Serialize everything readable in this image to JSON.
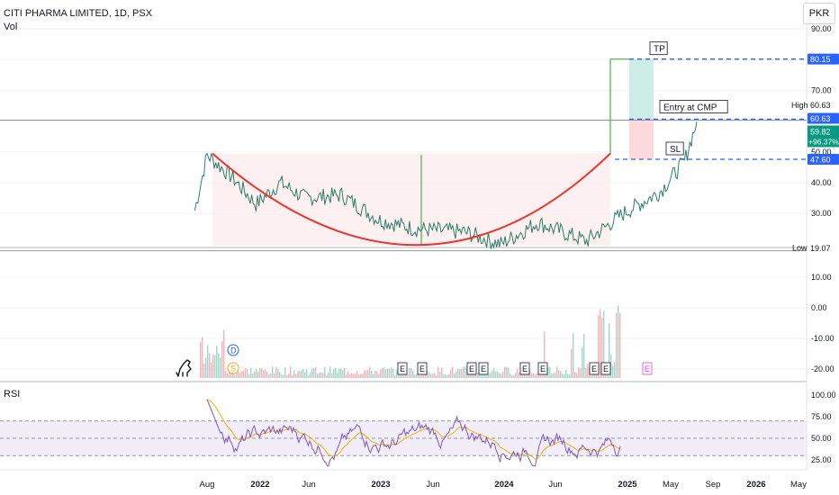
{
  "header": {
    "title": "CITI PHARMA LIMITED, 1D, PSX",
    "vol_label": "Vol",
    "rsi_label": "RSI"
  },
  "currency_button": "PKR",
  "colors": {
    "accent_blue": "#2962ff",
    "up_green": "#089981",
    "down_red": "#f23645",
    "cup_red": "#e53935",
    "rsi_purple": "#7e57c2",
    "rsi_yellow": "#f5b400",
    "tp_zone": "#cdeee7",
    "sl_zone": "#fbd9dd",
    "base_zone": "#fdecec"
  },
  "chart_data": [
    {
      "type": "line",
      "title": "CITI PHARMA LIMITED, 1D, PSX",
      "x_ticks": [
        "Aug",
        "2022",
        "Jun",
        "2023",
        "Jun",
        "2024",
        "Jun",
        "2025",
        "May",
        "Sep",
        "2026",
        "May"
      ],
      "y_ticks": [
        "90.00",
        "80.00",
        "70.00",
        "60.00",
        "50.00",
        "40.00",
        "30.00"
      ],
      "ylim": [
        19,
        90
      ],
      "price_points": [
        {
          "x": "2021-07",
          "y": 31
        },
        {
          "x": "2021-08",
          "y": 49
        },
        {
          "x": "2021-10",
          "y": 42
        },
        {
          "x": "2021-12",
          "y": 33
        },
        {
          "x": "2022-02",
          "y": 40
        },
        {
          "x": "2022-04",
          "y": 35
        },
        {
          "x": "2022-07",
          "y": 36
        },
        {
          "x": "2022-10",
          "y": 28
        },
        {
          "x": "2023-01",
          "y": 25
        },
        {
          "x": "2023-05",
          "y": 24
        },
        {
          "x": "2023-08",
          "y": 20
        },
        {
          "x": "2023-11",
          "y": 27
        },
        {
          "x": "2024-03",
          "y": 21
        },
        {
          "x": "2024-06",
          "y": 30
        },
        {
          "x": "2024-09",
          "y": 37
        },
        {
          "x": "2024-11",
          "y": 47
        },
        {
          "x": "2024-12",
          "y": 59.82
        }
      ],
      "levels": {
        "tp": {
          "label": "TP",
          "value": 80.15,
          "tag": "80.15"
        },
        "entry": {
          "label": "Entry at CMP",
          "value": 60.63,
          "tag": "60.63"
        },
        "sl": {
          "label": "SL",
          "value": 47.6,
          "tag": "47.60"
        }
      },
      "high": {
        "label": "High",
        "value": 60.63,
        "tag": "60.63"
      },
      "low": {
        "label": "Low",
        "value": 19.07,
        "tag": "19.07"
      },
      "last": {
        "value": 59.82,
        "tag": "59.82",
        "change": "+96.37%"
      },
      "pattern": "cup",
      "grid": true
    },
    {
      "type": "bar",
      "title": "Vol",
      "y_ticks": [
        "10.00",
        "0.00",
        "-10.00",
        "-20.00"
      ],
      "markers": [
        "D",
        "S",
        "E",
        "E",
        "E",
        "E",
        "E",
        "E",
        "E",
        "E",
        "E"
      ]
    },
    {
      "type": "line",
      "title": "RSI",
      "y_ticks": [
        "100.00",
        "75.00",
        "50.00",
        "25.00"
      ],
      "ylim": [
        25,
        100
      ],
      "bands": {
        "upper": 70,
        "middle": 50,
        "lower": 30
      }
    }
  ]
}
